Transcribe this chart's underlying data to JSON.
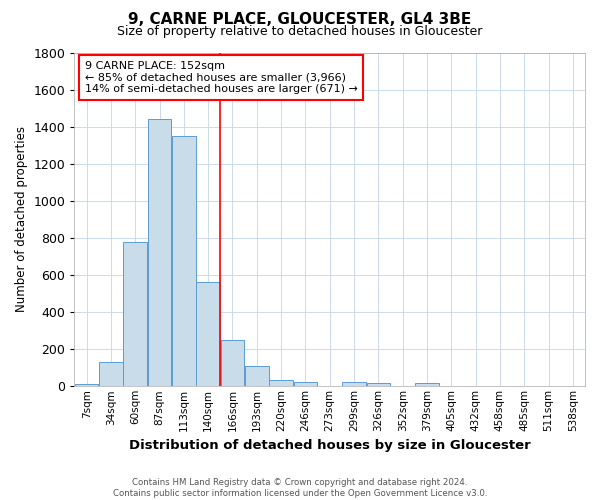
{
  "title": "9, CARNE PLACE, GLOUCESTER, GL4 3BE",
  "subtitle": "Size of property relative to detached houses in Gloucester",
  "xlabel": "Distribution of detached houses by size in Gloucester",
  "ylabel": "Number of detached properties",
  "footer_line1": "Contains HM Land Registry data © Crown copyright and database right 2024.",
  "footer_line2": "Contains public sector information licensed under the Open Government Licence v3.0.",
  "annotation_line1": "9 CARNE PLACE: 152sqm",
  "annotation_line2": "← 85% of detached houses are smaller (3,966)",
  "annotation_line3": "14% of semi-detached houses are larger (671) →",
  "bar_labels": [
    "7sqm",
    "34sqm",
    "60sqm",
    "87sqm",
    "113sqm",
    "140sqm",
    "166sqm",
    "193sqm",
    "220sqm",
    "246sqm",
    "273sqm",
    "299sqm",
    "326sqm",
    "352sqm",
    "379sqm",
    "405sqm",
    "432sqm",
    "458sqm",
    "485sqm",
    "511sqm",
    "538sqm"
  ],
  "bar_values": [
    10,
    130,
    780,
    1440,
    1350,
    560,
    250,
    110,
    35,
    25,
    0,
    25,
    15,
    0,
    15,
    0,
    0,
    0,
    0,
    0,
    0
  ],
  "bar_color": "#c9dcea",
  "bar_edgecolor": "#5b9bd5",
  "red_line_index": 5.5,
  "ylim": [
    0,
    1800
  ],
  "yticks": [
    0,
    200,
    400,
    600,
    800,
    1000,
    1200,
    1400,
    1600,
    1800
  ]
}
